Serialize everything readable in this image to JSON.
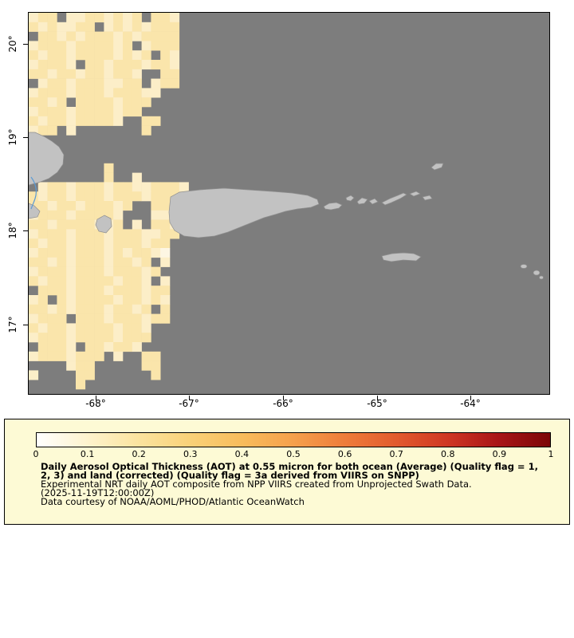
{
  "map": {
    "background": "#7d7d7d",
    "land_color": "#c2c2c2",
    "land_outline": "#8f8f8f",
    "contour_color": "#5b9bd5",
    "lat_labels": [
      "20°",
      "19°",
      "18°",
      "17°"
    ],
    "lon_labels": [
      "-68°",
      "-67°",
      "-66°",
      "-65°",
      "-64°"
    ],
    "cell_size": 11.8,
    "palette": {
      "1": "#fdf6e3",
      "2": "#fceec8",
      "3": "#fae5ab",
      "4": "#f7d98f"
    },
    "grid_rows": [
      "233.22332323.332.",
      "3232233.23232333.",
      ".332323332323333.",
      "23332333323.2333.",
      "3233233332323.32.",
      "23332.3323332332.",
      "332332332332..33.",
      ".23323332233.233.",
      "23332333233322...",
      "3323.33332333....",
      "233323333233.....",
      "3233233332..33...",
      "233.2.......3....",
      ".................",
      ".................",
      ".................",
      "........3........",
      "........3..2.....",
      ".2332333233223332",
      "32332333233323333",
      "33233233323..3332",
      "2333233332...2233",
      "3323333223.2.3322",
      "2333233323332233.",
      "323323332333233..",
      "233323332323321..",
      "3323233323323.2..",
      "23332333233323...",
      "3233233332332.2..",
      ".33323332333233..",
      "23.323333233232..",
      "3323233323323.3..",
      "2333.3332333233..",
      "3233233332332....",
      "2333233332333....",
      ".3332.332332.....",
      "23332333.2..33...",
      "....233.....33...",
      "2....33......3...",
      ".....3...........",
      "................."
    ]
  },
  "legend": {
    "background": "#fdfad5",
    "gradient_stops": [
      "#ffffff",
      "#fef3cd",
      "#fbe39e",
      "#f9d178",
      "#f8bc5c",
      "#f5a04c",
      "#ee7c3a",
      "#e25b2e",
      "#cf3723",
      "#a81518",
      "#7c0607"
    ],
    "ticks": [
      "0",
      "0.1",
      "0.2",
      "0.3",
      "0.4",
      "0.5",
      "0.6",
      "0.7",
      "0.8",
      "0.9",
      "1"
    ],
    "range": [
      0,
      1
    ],
    "title_line1": "Daily Aerosol Optical Thickness (AOT) at 0.55 micron for both ocean (Average) (Quality flag = 1,",
    "title_line2": "2, 3) and land (corrected) (Quality flag = 3a derived from VIIRS on SNPP)",
    "subtitle": "Experimental NRT daily AOT composite from NPP VIIRS created from Unprojected Swath Data.",
    "timestamp": "(2025-11-19T12:00:00Z)",
    "credit": "Data courtesy of NOAA/AOML/PHOD/Atlantic OceanWatch"
  }
}
